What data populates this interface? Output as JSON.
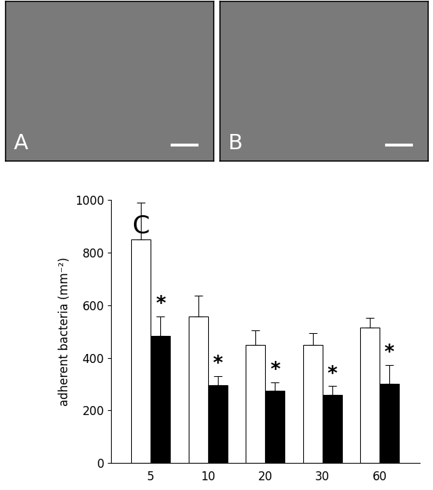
{
  "panels": [
    {
      "label": "A"
    },
    {
      "label": "B"
    }
  ],
  "chart_data": {
    "type": "bar",
    "panel_label": "C",
    "y_label": "adherent bacteria (mm⁻²)",
    "categories": [
      "5",
      "10",
      "20",
      "30",
      "60"
    ],
    "series": [
      {
        "color": "#ffffff",
        "values": [
          850,
          557,
          450,
          450,
          515
        ],
        "error": [
          140,
          80,
          55,
          43,
          37
        ]
      },
      {
        "color": "#000000",
        "values": [
          482,
          297,
          275,
          260,
          302
        ],
        "error": [
          75,
          33,
          32,
          32,
          70
        ]
      }
    ],
    "annotations": [
      {
        "text": "*",
        "series": 1,
        "category": "5"
      },
      {
        "text": "*",
        "series": 1,
        "category": "10"
      },
      {
        "text": "*",
        "series": 1,
        "category": "20"
      },
      {
        "text": "*",
        "series": 1,
        "category": "30"
      },
      {
        "text": "*",
        "series": 1,
        "category": "60"
      }
    ],
    "ylim": [
      0,
      1000
    ],
    "yticks": [
      0,
      200,
      400,
      600,
      800,
      1000
    ],
    "grid": false
  }
}
